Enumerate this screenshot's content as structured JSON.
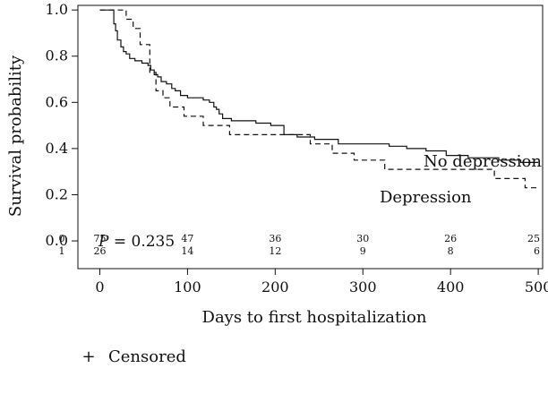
{
  "chart_data": {
    "type": "line",
    "title": "",
    "xlabel": "Days to first hospitalization",
    "ylabel": "Survival probability",
    "xlim": [
      -25,
      505
    ],
    "ylim": [
      -0.12,
      1.02
    ],
    "x_ticks": [
      0,
      100,
      200,
      300,
      400,
      500
    ],
    "y_ticks": [
      0.0,
      0.2,
      0.4,
      0.6,
      0.8,
      1.0
    ],
    "x_tick_labels": [
      "0",
      "100",
      "200",
      "300",
      "400",
      "500"
    ],
    "y_tick_labels": [
      "0.0",
      "0.2",
      "0.4",
      "0.6",
      "0.8",
      "1.0"
    ],
    "grid": false,
    "series": [
      {
        "name": "No depression",
        "style": "solid",
        "color": "#111111",
        "x": [
          0,
          14,
          16,
          18,
          20,
          24,
          27,
          30,
          34,
          40,
          48,
          55,
          58,
          62,
          66,
          70,
          76,
          82,
          86,
          92,
          100,
          118,
          125,
          130,
          133,
          136,
          140,
          145,
          150,
          160,
          178,
          195,
          210,
          225,
          245,
          272,
          330,
          350,
          372,
          395,
          420,
          455,
          480,
          500
        ],
        "y": [
          1.0,
          1.0,
          0.94,
          0.91,
          0.87,
          0.84,
          0.82,
          0.81,
          0.79,
          0.78,
          0.77,
          0.76,
          0.74,
          0.72,
          0.71,
          0.69,
          0.68,
          0.66,
          0.65,
          0.63,
          0.62,
          0.61,
          0.6,
          0.58,
          0.57,
          0.55,
          0.53,
          0.53,
          0.52,
          0.52,
          0.51,
          0.5,
          0.46,
          0.45,
          0.44,
          0.42,
          0.41,
          0.4,
          0.39,
          0.37,
          0.36,
          0.35,
          0.34,
          0.34
        ]
      },
      {
        "name": "Depression",
        "style": "dashed",
        "color": "#111111",
        "x": [
          0,
          28,
          30,
          38,
          46,
          57,
          64,
          72,
          80,
          96,
          118,
          148,
          205,
          240,
          265,
          290,
          325,
          370,
          450,
          485,
          500
        ],
        "y": [
          1.0,
          1.0,
          0.96,
          0.92,
          0.85,
          0.73,
          0.65,
          0.62,
          0.58,
          0.54,
          0.5,
          0.46,
          0.46,
          0.42,
          0.38,
          0.35,
          0.31,
          0.31,
          0.27,
          0.23,
          0.23
        ]
      }
    ],
    "annotations": {
      "no_depression": "No depression",
      "depression": "Depression",
      "p_label": "P",
      "p_value": " = 0.235"
    },
    "risk_table": {
      "times": [
        0,
        100,
        200,
        300,
        400,
        500
      ],
      "rows": [
        {
          "label": "0",
          "counts": [
            "75",
            "47",
            "36",
            "30",
            "26",
            "25"
          ]
        },
        {
          "label": "1",
          "counts": [
            "26",
            "14",
            "12",
            "9",
            "8",
            "6"
          ]
        }
      ]
    },
    "legend": {
      "symbol": "+",
      "label": "Censored",
      "placement": "bottom-left"
    }
  }
}
